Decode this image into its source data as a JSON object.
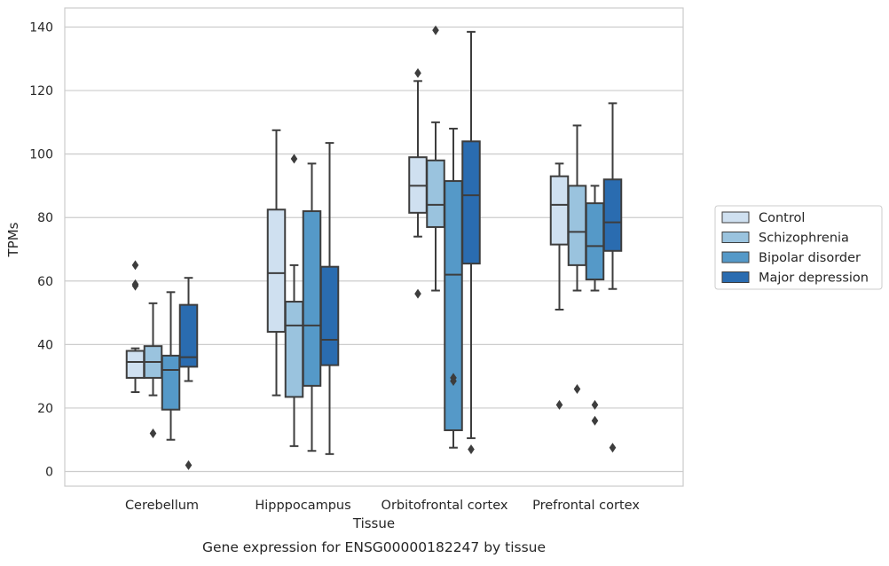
{
  "chart_data": {
    "type": "box",
    "caption": "Gene expression for ENSG00000182247 by tissue",
    "xlabel": "Tissue",
    "ylabel": "TPMs",
    "ylim": [
      -4.5,
      146
    ],
    "yticks": [
      0,
      20,
      40,
      60,
      80,
      100,
      120,
      140
    ],
    "grid": "horizontal",
    "legend_position": "right",
    "categories": [
      "Cerebellum",
      "Hipppocampus",
      "Orbitofrontal cortex",
      "Prefrontal cortex"
    ],
    "series": [
      {
        "name": "Control",
        "color": "#cfe0f0",
        "boxes": [
          {
            "whisker_low": 25,
            "q1": 29.5,
            "median": 34.5,
            "q3": 38,
            "whisker_high": 38.8,
            "outliers": [
              65,
              59,
              58.5
            ]
          },
          {
            "whisker_low": 24,
            "q1": 44,
            "median": 62.5,
            "q3": 82.5,
            "whisker_high": 107.5,
            "outliers": []
          },
          {
            "whisker_low": 74,
            "q1": 81.5,
            "median": 90,
            "q3": 99,
            "whisker_high": 123,
            "outliers": [
              125.5,
              56
            ]
          },
          {
            "whisker_low": 51,
            "q1": 71.5,
            "median": 84,
            "q3": 93,
            "whisker_high": 97,
            "outliers": [
              21
            ]
          }
        ]
      },
      {
        "name": "Schizophrenia",
        "color": "#9ac3de",
        "boxes": [
          {
            "whisker_low": 24,
            "q1": 29.5,
            "median": 34.5,
            "q3": 39.5,
            "whisker_high": 53,
            "outliers": [
              12
            ]
          },
          {
            "whisker_low": 8,
            "q1": 23.5,
            "median": 46,
            "q3": 53.5,
            "whisker_high": 65,
            "outliers": [
              98.5
            ]
          },
          {
            "whisker_low": 57,
            "q1": 77,
            "median": 84,
            "q3": 98,
            "whisker_high": 110,
            "outliers": [
              139
            ]
          },
          {
            "whisker_low": 57,
            "q1": 65,
            "median": 75.5,
            "q3": 90,
            "whisker_high": 109,
            "outliers": [
              26
            ]
          }
        ]
      },
      {
        "name": "Bipolar disorder",
        "color": "#5599c8",
        "boxes": [
          {
            "whisker_low": 10,
            "q1": 19.5,
            "median": 32,
            "q3": 36.5,
            "whisker_high": 56.5,
            "outliers": []
          },
          {
            "whisker_low": 6.5,
            "q1": 27,
            "median": 46,
            "q3": 82,
            "whisker_high": 97,
            "outliers": []
          },
          {
            "whisker_low": 7.5,
            "q1": 13,
            "median": 62,
            "q3": 91.5,
            "whisker_high": 108,
            "outliers": [
              29.5,
              28.5
            ]
          },
          {
            "whisker_low": 57,
            "q1": 60.5,
            "median": 71,
            "q3": 84.5,
            "whisker_high": 90,
            "outliers": [
              21,
              16
            ]
          }
        ]
      },
      {
        "name": "Major depression",
        "color": "#2a6cb0",
        "boxes": [
          {
            "whisker_low": 28.5,
            "q1": 33,
            "median": 36,
            "q3": 52.5,
            "whisker_high": 61,
            "outliers": [
              2
            ]
          },
          {
            "whisker_low": 5.5,
            "q1": 33.5,
            "median": 41.5,
            "q3": 64.5,
            "whisker_high": 103.5,
            "outliers": []
          },
          {
            "whisker_low": 10.5,
            "q1": 65.5,
            "median": 87,
            "q3": 104,
            "whisker_high": 138.5,
            "outliers": [
              7
            ]
          },
          {
            "whisker_low": 57.5,
            "q1": 69.5,
            "median": 78.5,
            "q3": 92,
            "whisker_high": 116,
            "outliers": [
              7.5
            ]
          }
        ]
      }
    ]
  }
}
